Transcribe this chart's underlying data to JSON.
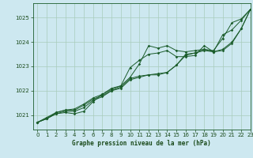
{
  "xlabel": "Graphe pression niveau de la mer (hPa)",
  "bg_color": "#cde8f0",
  "plot_bg_color": "#cde8f0",
  "grid_color": "#a8ccbb",
  "line_color": "#1a5c2a",
  "text_color": "#1a4a1a",
  "ylim": [
    1020.4,
    1025.6
  ],
  "xlim": [
    -0.5,
    23
  ],
  "yticks": [
    1021,
    1022,
    1023,
    1024,
    1025
  ],
  "xticks": [
    0,
    1,
    2,
    3,
    4,
    5,
    6,
    7,
    8,
    9,
    10,
    11,
    12,
    13,
    14,
    15,
    16,
    17,
    18,
    19,
    20,
    21,
    22,
    23
  ],
  "series": [
    [
      1020.7,
      1020.85,
      1021.05,
      1021.1,
      1021.05,
      1021.15,
      1021.55,
      1021.85,
      1022.1,
      1022.2,
      1022.55,
      1023.1,
      1023.85,
      1023.75,
      1023.85,
      1023.65,
      1023.6,
      1023.65,
      1023.7,
      1023.65,
      1024.15,
      1024.8,
      1024.95,
      1025.35
    ],
    [
      1020.7,
      1020.85,
      1021.05,
      1021.15,
      1021.15,
      1021.3,
      1021.6,
      1021.75,
      1022.0,
      1022.1,
      1022.45,
      1022.55,
      1022.65,
      1022.65,
      1022.75,
      1023.05,
      1023.45,
      1023.55,
      1023.65,
      1023.6,
      1023.65,
      1023.95,
      1024.55,
      1025.35
    ],
    [
      1020.7,
      1020.85,
      1021.1,
      1021.2,
      1021.2,
      1021.4,
      1021.65,
      1021.8,
      1022.0,
      1022.15,
      1022.5,
      1022.6,
      1022.65,
      1022.7,
      1022.75,
      1023.05,
      1023.5,
      1023.55,
      1023.7,
      1023.6,
      1023.7,
      1024.0,
      1024.55,
      1025.35
    ],
    [
      1020.7,
      1020.9,
      1021.1,
      1021.2,
      1021.25,
      1021.45,
      1021.7,
      1021.85,
      1022.05,
      1022.2,
      1022.95,
      1023.25,
      1023.5,
      1023.55,
      1023.65,
      1023.4,
      1023.4,
      1023.45,
      1023.85,
      1023.6,
      1024.3,
      1024.5,
      1024.9,
      1025.35
    ]
  ]
}
